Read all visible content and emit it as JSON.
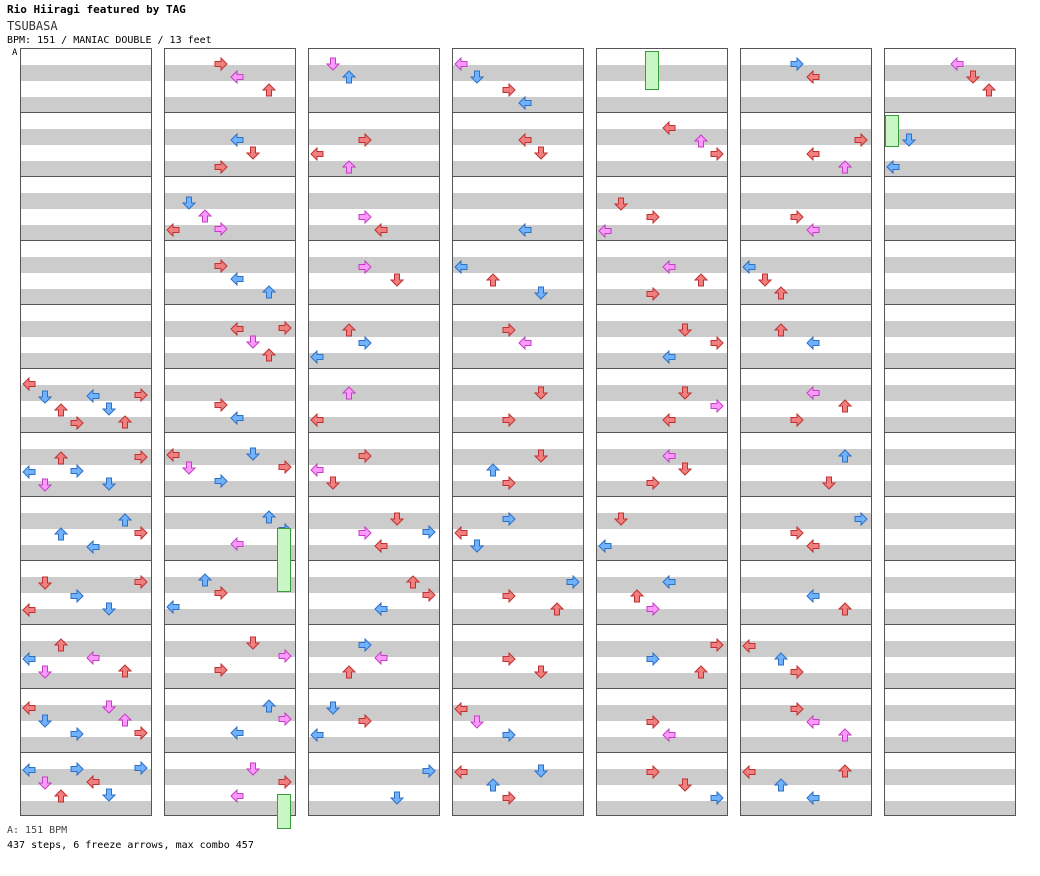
{
  "header": {
    "artist": "Rio Hiiragi featured by TAG",
    "song": "TSUBASA",
    "info": "BPM: 151 / MANIAC DOUBLE / 13 feet"
  },
  "bpm_marker": "A",
  "footer": {
    "bpm_note": "A: 151 BPM",
    "stats": "437 steps, 6 freeze arrows, max combo 457"
  },
  "colors": {
    "red": "#f08080",
    "blue": "#6fb3ff",
    "pink": "#ff99ff",
    "freeze": "#c8f7c5"
  },
  "chart": {
    "columns": 7,
    "measures_per_column": 12,
    "lanes": 8,
    "lane_directions": [
      "left",
      "down",
      "up",
      "right",
      "left",
      "down",
      "up",
      "right"
    ],
    "notes": [
      [
        [
          5,
          0,
          "red"
        ],
        [
          5,
          1,
          "blue"
        ],
        [
          5,
          2,
          "red"
        ],
        [
          5,
          3,
          "red"
        ],
        [
          5,
          4,
          "blue"
        ],
        [
          5,
          5,
          "blue"
        ],
        [
          5,
          6,
          "red"
        ],
        [
          5,
          7,
          "red"
        ],
        [
          6,
          0,
          "blue"
        ],
        [
          6,
          1,
          "pink"
        ],
        [
          6,
          2,
          "red"
        ],
        [
          6,
          3,
          "blue"
        ],
        [
          6,
          5,
          "blue"
        ],
        [
          6,
          7,
          "red"
        ],
        [
          7,
          2,
          "blue"
        ],
        [
          7,
          4,
          "blue"
        ],
        [
          7,
          6,
          "blue"
        ],
        [
          7,
          7,
          "red"
        ],
        [
          8,
          0,
          "red"
        ],
        [
          8,
          1,
          "red"
        ],
        [
          8,
          3,
          "blue"
        ],
        [
          8,
          5,
          "blue"
        ],
        [
          8,
          7,
          "red"
        ],
        [
          9,
          0,
          "blue"
        ],
        [
          9,
          1,
          "pink"
        ],
        [
          9,
          2,
          "red"
        ],
        [
          9,
          4,
          "pink"
        ],
        [
          9,
          6,
          "red"
        ],
        [
          10,
          0,
          "red"
        ],
        [
          10,
          1,
          "blue"
        ],
        [
          10,
          3,
          "blue"
        ],
        [
          10,
          5,
          "pink"
        ],
        [
          10,
          6,
          "pink"
        ],
        [
          10,
          7,
          "red"
        ],
        [
          11,
          0,
          "blue"
        ],
        [
          11,
          1,
          "pink"
        ],
        [
          11,
          2,
          "red"
        ],
        [
          11,
          3,
          "blue"
        ],
        [
          11,
          4,
          "red"
        ],
        [
          11,
          5,
          "blue"
        ],
        [
          11,
          7,
          "blue"
        ]
      ],
      [
        [
          0,
          3,
          "red"
        ],
        [
          0,
          4,
          "pink"
        ],
        [
          0,
          6,
          "red"
        ],
        [
          1,
          3,
          "red"
        ],
        [
          1,
          4,
          "blue"
        ],
        [
          1,
          5,
          "red"
        ],
        [
          2,
          0,
          "red"
        ],
        [
          2,
          1,
          "blue"
        ],
        [
          2,
          2,
          "pink"
        ],
        [
          2,
          3,
          "pink"
        ],
        [
          3,
          3,
          "red"
        ],
        [
          3,
          4,
          "blue"
        ],
        [
          3,
          6,
          "blue"
        ],
        [
          4,
          4,
          "red"
        ],
        [
          4,
          5,
          "pink"
        ],
        [
          4,
          6,
          "red"
        ],
        [
          4,
          7,
          "red"
        ],
        [
          5,
          3,
          "red"
        ],
        [
          5,
          4,
          "blue"
        ],
        [
          6,
          0,
          "red"
        ],
        [
          6,
          1,
          "pink"
        ],
        [
          6,
          3,
          "blue"
        ],
        [
          6,
          5,
          "blue"
        ],
        [
          6,
          7,
          "red"
        ],
        [
          7,
          4,
          "pink"
        ],
        [
          7,
          6,
          "blue"
        ],
        [
          7,
          7,
          "blue"
        ],
        [
          8,
          0,
          "blue"
        ],
        [
          8,
          2,
          "blue"
        ],
        [
          8,
          3,
          "red"
        ],
        [
          9,
          3,
          "red"
        ],
        [
          9,
          5,
          "red"
        ],
        [
          9,
          7,
          "pink"
        ],
        [
          10,
          4,
          "blue"
        ],
        [
          10,
          6,
          "blue"
        ],
        [
          10,
          7,
          "pink"
        ],
        [
          11,
          4,
          "pink"
        ],
        [
          11,
          5,
          "pink"
        ],
        [
          11,
          7,
          "red"
        ]
      ],
      [
        [
          0,
          1,
          "pink"
        ],
        [
          0,
          2,
          "blue"
        ],
        [
          1,
          0,
          "red"
        ],
        [
          1,
          2,
          "pink"
        ],
        [
          1,
          3,
          "red"
        ],
        [
          2,
          3,
          "pink"
        ],
        [
          2,
          4,
          "red"
        ],
        [
          3,
          3,
          "pink"
        ],
        [
          3,
          5,
          "red"
        ],
        [
          4,
          0,
          "blue"
        ],
        [
          4,
          2,
          "red"
        ],
        [
          4,
          3,
          "blue"
        ],
        [
          5,
          0,
          "red"
        ],
        [
          5,
          2,
          "pink"
        ],
        [
          6,
          0,
          "pink"
        ],
        [
          6,
          1,
          "red"
        ],
        [
          6,
          3,
          "red"
        ],
        [
          7,
          3,
          "pink"
        ],
        [
          7,
          4,
          "red"
        ],
        [
          7,
          5,
          "red"
        ],
        [
          7,
          7,
          "blue"
        ],
        [
          8,
          4,
          "blue"
        ],
        [
          8,
          6,
          "red"
        ],
        [
          8,
          7,
          "red"
        ],
        [
          9,
          2,
          "red"
        ],
        [
          9,
          3,
          "blue"
        ],
        [
          9,
          4,
          "pink"
        ],
        [
          10,
          0,
          "blue"
        ],
        [
          10,
          1,
          "blue"
        ],
        [
          10,
          3,
          "red"
        ],
        [
          11,
          5,
          "blue"
        ],
        [
          11,
          7,
          "blue"
        ]
      ],
      [
        [
          0,
          0,
          "pink"
        ],
        [
          0,
          1,
          "blue"
        ],
        [
          0,
          3,
          "red"
        ],
        [
          0,
          4,
          "blue"
        ],
        [
          1,
          4,
          "red"
        ],
        [
          1,
          5,
          "red"
        ],
        [
          2,
          4,
          "blue"
        ],
        [
          3,
          0,
          "blue"
        ],
        [
          3,
          2,
          "red"
        ],
        [
          3,
          5,
          "blue"
        ],
        [
          4,
          3,
          "red"
        ],
        [
          4,
          4,
          "pink"
        ],
        [
          5,
          3,
          "red"
        ],
        [
          5,
          5,
          "red"
        ],
        [
          6,
          2,
          "blue"
        ],
        [
          6,
          3,
          "red"
        ],
        [
          6,
          5,
          "red"
        ],
        [
          7,
          0,
          "red"
        ],
        [
          7,
          1,
          "blue"
        ],
        [
          7,
          3,
          "blue"
        ],
        [
          8,
          3,
          "red"
        ],
        [
          8,
          6,
          "red"
        ],
        [
          8,
          7,
          "blue"
        ],
        [
          9,
          3,
          "red"
        ],
        [
          9,
          5,
          "red"
        ],
        [
          10,
          0,
          "red"
        ],
        [
          10,
          1,
          "pink"
        ],
        [
          10,
          3,
          "blue"
        ],
        [
          11,
          0,
          "red"
        ],
        [
          11,
          2,
          "blue"
        ],
        [
          11,
          3,
          "red"
        ],
        [
          11,
          5,
          "blue"
        ]
      ],
      [
        [
          1,
          4,
          "red"
        ],
        [
          1,
          6,
          "pink"
        ],
        [
          1,
          7,
          "red"
        ],
        [
          2,
          0,
          "pink"
        ],
        [
          2,
          1,
          "red"
        ],
        [
          2,
          3,
          "red"
        ],
        [
          3,
          3,
          "red"
        ],
        [
          3,
          4,
          "pink"
        ],
        [
          3,
          6,
          "red"
        ],
        [
          4,
          4,
          "blue"
        ],
        [
          4,
          5,
          "red"
        ],
        [
          4,
          7,
          "red"
        ],
        [
          5,
          4,
          "red"
        ],
        [
          5,
          5,
          "red"
        ],
        [
          5,
          7,
          "pink"
        ],
        [
          6,
          3,
          "red"
        ],
        [
          6,
          4,
          "pink"
        ],
        [
          6,
          5,
          "red"
        ],
        [
          7,
          0,
          "blue"
        ],
        [
          7,
          1,
          "red"
        ],
        [
          8,
          2,
          "red"
        ],
        [
          8,
          3,
          "pink"
        ],
        [
          8,
          4,
          "blue"
        ],
        [
          9,
          3,
          "blue"
        ],
        [
          9,
          6,
          "red"
        ],
        [
          9,
          7,
          "red"
        ],
        [
          10,
          3,
          "red"
        ],
        [
          10,
          4,
          "pink"
        ],
        [
          11,
          3,
          "red"
        ],
        [
          11,
          5,
          "red"
        ],
        [
          11,
          7,
          "blue"
        ]
      ],
      [
        [
          0,
          3,
          "blue"
        ],
        [
          0,
          4,
          "red"
        ],
        [
          1,
          4,
          "red"
        ],
        [
          1,
          6,
          "pink"
        ],
        [
          1,
          7,
          "red"
        ],
        [
          2,
          3,
          "red"
        ],
        [
          2,
          4,
          "pink"
        ],
        [
          3,
          0,
          "blue"
        ],
        [
          3,
          1,
          "red"
        ],
        [
          3,
          2,
          "red"
        ],
        [
          4,
          2,
          "red"
        ],
        [
          4,
          4,
          "blue"
        ],
        [
          5,
          3,
          "red"
        ],
        [
          5,
          4,
          "pink"
        ],
        [
          5,
          6,
          "red"
        ],
        [
          6,
          5,
          "red"
        ],
        [
          6,
          6,
          "blue"
        ],
        [
          7,
          3,
          "red"
        ],
        [
          7,
          4,
          "red"
        ],
        [
          7,
          7,
          "blue"
        ],
        [
          8,
          4,
          "blue"
        ],
        [
          8,
          6,
          "red"
        ],
        [
          9,
          0,
          "red"
        ],
        [
          9,
          2,
          "blue"
        ],
        [
          9,
          3,
          "red"
        ],
        [
          10,
          3,
          "red"
        ],
        [
          10,
          4,
          "pink"
        ],
        [
          10,
          6,
          "pink"
        ],
        [
          11,
          0,
          "red"
        ],
        [
          11,
          2,
          "blue"
        ],
        [
          11,
          4,
          "blue"
        ],
        [
          11,
          6,
          "red"
        ]
      ],
      [
        [
          0,
          4,
          "pink"
        ],
        [
          0,
          5,
          "red"
        ],
        [
          0,
          6,
          "red"
        ],
        [
          1,
          0,
          "blue"
        ],
        [
          1,
          1,
          "blue"
        ]
      ]
    ],
    "freezes": [
      [
        1,
        7.5,
        1,
        "green"
      ],
      [
        1,
        11.65,
        0.55,
        "green"
      ],
      [
        4,
        0.05,
        0.6,
        "green"
      ],
      [
        6,
        1.05,
        0.5,
        "green"
      ]
    ]
  }
}
